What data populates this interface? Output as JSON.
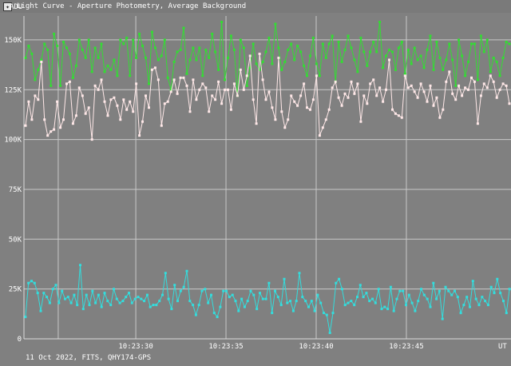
{
  "window": {
    "title": "Light Curve - Aperture Photometry, Average Background",
    "icon": "app-icon"
  },
  "chart_data": {
    "type": "line",
    "ylabel": "ADU",
    "xlabel": "UT",
    "footer": "11 Oct 2022, FITS, QHY174-GPS",
    "y_ticks": [
      {
        "value": 0,
        "label": "0"
      },
      {
        "value": 25000,
        "label": "25K"
      },
      {
        "value": 50000,
        "label": "50K"
      },
      {
        "value": 75000,
        "label": "75K"
      },
      {
        "value": 100000,
        "label": "100K"
      },
      {
        "value": 125000,
        "label": "125K"
      },
      {
        "value": 150000,
        "label": "150K"
      }
    ],
    "x_ticks": [
      {
        "value": 25.7,
        "label": ""
      },
      {
        "value": 30,
        "label": "10:23:30"
      },
      {
        "value": 35,
        "label": "10:23:35"
      },
      {
        "value": 40,
        "label": "10:23:40"
      },
      {
        "value": 45,
        "label": "10:23:45"
      }
    ],
    "xlim": [
      23.8,
      50.8
    ],
    "ylim": [
      0,
      162000
    ],
    "x_unit_note": "seconds after 10:23:00 UT",
    "grid": true,
    "series": [
      {
        "color": "#33dd33",
        "values": [
          141,
          147,
          143,
          130,
          135,
          140,
          148,
          145,
          127,
          153,
          147,
          127,
          149,
          146,
          143,
          131,
          137,
          150,
          145,
          141,
          150,
          134,
          146,
          141,
          148,
          134,
          137,
          135,
          140,
          132,
          150,
          148,
          151,
          132,
          150,
          141,
          153,
          147,
          141,
          128,
          154,
          146,
          140,
          142,
          150,
          131,
          125,
          139,
          144,
          145,
          156,
          133,
          140,
          146,
          140,
          146,
          132,
          145,
          141,
          153,
          144,
          135,
          159,
          130,
          141,
          152,
          145,
          122,
          150,
          146,
          127,
          136,
          148,
          138,
          135,
          139,
          144,
          151,
          138,
          158,
          146,
          135,
          139,
          145,
          148,
          140,
          147,
          144,
          137,
          132,
          142,
          151,
          138,
          132,
          148,
          141,
          148,
          152,
          129,
          149,
          139,
          145,
          152,
          146,
          140,
          134,
          151,
          144,
          137,
          144,
          149,
          144,
          159,
          136,
          142,
          145,
          144,
          135,
          146,
          149,
          133,
          145,
          138,
          146,
          140,
          142,
          136,
          145,
          152,
          135,
          149,
          141,
          135,
          140,
          148,
          140,
          127,
          150,
          142,
          132,
          139,
          148,
          148,
          130,
          152,
          144,
          150,
          134,
          141,
          139,
          132,
          141,
          149,
          148
        ]
      },
      {
        "color": "#ffe8e8",
        "values": [
          107,
          119,
          110,
          122,
          120,
          139,
          110,
          102,
          104,
          105,
          119,
          106,
          110,
          128,
          129,
          108,
          112,
          126,
          122,
          113,
          116,
          100,
          127,
          125,
          130,
          119,
          112,
          120,
          121,
          117,
          110,
          120,
          115,
          119,
          114,
          128,
          102,
          109,
          122,
          116,
          135,
          136,
          130,
          107,
          118,
          119,
          124,
          130,
          123,
          131,
          131,
          127,
          114,
          130,
          120,
          125,
          128,
          126,
          114,
          122,
          120,
          129,
          118,
          125,
          125,
          115,
          128,
          122,
          135,
          125,
          132,
          142,
          120,
          108,
          143,
          130,
          120,
          124,
          116,
          110,
          141,
          114,
          106,
          110,
          122,
          119,
          117,
          122,
          128,
          116,
          115,
          120,
          132,
          102,
          106,
          110,
          115,
          126,
          129,
          121,
          117,
          123,
          121,
          129,
          123,
          128,
          109,
          122,
          118,
          128,
          130,
          122,
          126,
          119,
          125,
          140,
          115,
          113,
          112,
          111,
          132,
          126,
          127,
          124,
          121,
          128,
          124,
          119,
          127,
          117,
          121,
          111,
          115,
          129,
          134,
          123,
          120,
          127,
          122,
          126,
          125,
          131,
          129,
          108,
          122,
          128,
          126,
          132,
          129,
          121,
          125,
          128,
          127,
          118
        ]
      },
      {
        "color": "#33dddd",
        "values": [
          11,
          28,
          29,
          28,
          23,
          14,
          23,
          21,
          18,
          25,
          27,
          18,
          24,
          20,
          21,
          18,
          22,
          17,
          37,
          15,
          22,
          17,
          24,
          18,
          22,
          16,
          23,
          19,
          17,
          25,
          20,
          18,
          19,
          21,
          23,
          18,
          20,
          21,
          20,
          19,
          22,
          16,
          17,
          17,
          19,
          22,
          33,
          20,
          15,
          27,
          19,
          24,
          26,
          34,
          19,
          17,
          12,
          17,
          24,
          25,
          18,
          22,
          13,
          11,
          16,
          24,
          24,
          21,
          22,
          19,
          14,
          20,
          16,
          19,
          24,
          22,
          15,
          23,
          20,
          20,
          28,
          13,
          24,
          21,
          17,
          30,
          18,
          19,
          14,
          19,
          33,
          21,
          19,
          16,
          19,
          14,
          22,
          18,
          13,
          12,
          3,
          13,
          28,
          30,
          25,
          17,
          18,
          19,
          17,
          21,
          27,
          21,
          23,
          19,
          20,
          18,
          25,
          15,
          16,
          15,
          26,
          14,
          20,
          24,
          24,
          17,
          22,
          18,
          14,
          19,
          25,
          22,
          20,
          16,
          28,
          20,
          24,
          10,
          26,
          24,
          22,
          24,
          21,
          13,
          17,
          21,
          16,
          29,
          20,
          17,
          21,
          19,
          17,
          26,
          23,
          30,
          23,
          19,
          13,
          25
        ]
      }
    ]
  }
}
